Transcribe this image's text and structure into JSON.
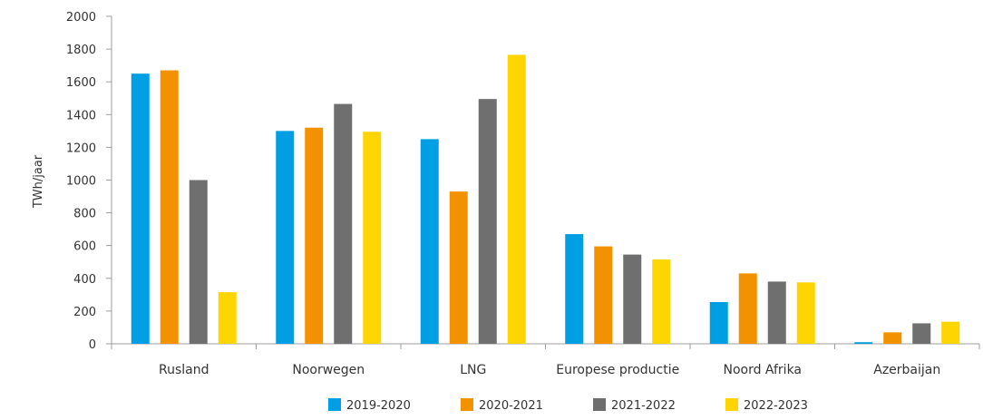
{
  "chart_data": {
    "type": "bar",
    "title": "",
    "xlabel": "",
    "ylabel": "TWh/jaar",
    "ylim": [
      0,
      2000
    ],
    "yticks": [
      0,
      200,
      400,
      600,
      800,
      1000,
      1200,
      1400,
      1600,
      1800,
      2000
    ],
    "categories": [
      "Rusland",
      "Noorwegen",
      "LNG",
      "Europese productie",
      "Noord Afrika",
      "Azerbaijan"
    ],
    "series": [
      {
        "name": "2019-2020",
        "color": "#009fe3",
        "values": [
          1650,
          1300,
          1250,
          670,
          255,
          10
        ]
      },
      {
        "name": "2020-2021",
        "color": "#f39200",
        "values": [
          1670,
          1320,
          930,
          595,
          430,
          70
        ]
      },
      {
        "name": "2021-2022",
        "color": "#706f6f",
        "values": [
          1000,
          1465,
          1495,
          545,
          380,
          125
        ]
      },
      {
        "name": "2022-2023",
        "color": "#ffd500",
        "values": [
          315,
          1295,
          1765,
          515,
          375,
          135
        ]
      }
    ],
    "grid": false,
    "legend": "bottom"
  }
}
